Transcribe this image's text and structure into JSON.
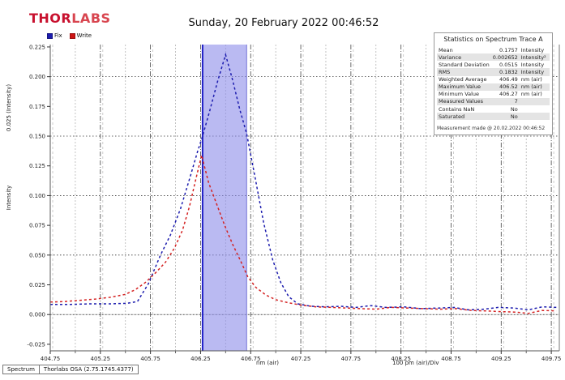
{
  "header": {
    "logo_thor": "THOR",
    "logo_labs": "LABS",
    "title": "Sunday, 20 February 2022 00:46:52"
  },
  "legend": {
    "items": [
      {
        "label": "Fix",
        "color": "#1c1cae"
      },
      {
        "label": "Write",
        "color": "#cc1414"
      }
    ]
  },
  "stats_panel": {
    "title": "Statistics on Spectrum Trace A",
    "rows": [
      {
        "label": "Mean",
        "value": "0.1757",
        "unit": "Intensity"
      },
      {
        "label": "Variance",
        "value": "0.002652",
        "unit": "Intensity²"
      },
      {
        "label": "Standard Deviation",
        "value": "0.0515",
        "unit": "Intensity"
      },
      {
        "label": "RMS",
        "value": "0.1832",
        "unit": "Intensity"
      },
      {
        "label": "Weighted Average",
        "value": "406.49",
        "unit": "nm (air)"
      },
      {
        "label": "Maximum Value",
        "value": "406.52",
        "unit": "nm (air)"
      },
      {
        "label": "Minimum Value",
        "value": "406.27",
        "unit": "nm (air)"
      },
      {
        "label": "Measured Values",
        "value": "7",
        "unit": ""
      },
      {
        "label": "Contains NaN",
        "value": "No",
        "unit": ""
      },
      {
        "label": "Saturated",
        "value": "No",
        "unit": ""
      }
    ],
    "footer": "Measurement made @ 20.02.2022 00:46:52"
  },
  "status_bar": {
    "left": "Spectrum",
    "right": "Thorlabs OSA (2.75.1745.4377)"
  },
  "chart_data": {
    "type": "line",
    "title": "Sunday, 20 February 2022 00:46:52",
    "xlabel": "nm (air)",
    "x_div_label": "100 pm (air)/Div",
    "ylabel": "Intensity",
    "y_div_label": "0.025 (Intensity)",
    "xlim": [
      404.75,
      409.83
    ],
    "ylim": [
      -0.0305,
      0.227
    ],
    "grid": true,
    "legend_position": "top-left",
    "x_ticks_major": [
      404.75,
      405.25,
      405.75,
      406.25,
      406.75,
      407.25,
      407.75,
      408.25,
      408.75,
      409.25,
      409.75
    ],
    "y_ticks": [
      0.225,
      0.2,
      0.175,
      0.15,
      0.125,
      0.1,
      0.075,
      0.05,
      0.025,
      0.0,
      -0.025
    ],
    "y_grid": [
      0.2,
      0.15,
      0.1,
      0.05,
      0.0
    ],
    "highlight_region": {
      "x_start": 406.27,
      "x_end": 406.71,
      "fill": "#8c8cea",
      "opacity": 0.6,
      "left_border": "#2020c8",
      "right_border": "#8888dd"
    },
    "series": [
      {
        "name": "Trace A (Fix)",
        "color": "#1c1cae",
        "dash": "3,3",
        "points": [
          [
            404.75,
            0.0085
          ],
          [
            404.95,
            0.0085
          ],
          [
            405.15,
            0.009
          ],
          [
            405.35,
            0.009
          ],
          [
            405.52,
            0.0095
          ],
          [
            405.62,
            0.011
          ],
          [
            405.73,
            0.026
          ],
          [
            405.85,
            0.05
          ],
          [
            405.95,
            0.067
          ],
          [
            406.05,
            0.089
          ],
          [
            406.15,
            0.117
          ],
          [
            406.22,
            0.137
          ],
          [
            406.27,
            0.15
          ],
          [
            406.34,
            0.171
          ],
          [
            406.42,
            0.196
          ],
          [
            406.5,
            0.2185
          ],
          [
            406.57,
            0.197
          ],
          [
            406.64,
            0.173
          ],
          [
            406.71,
            0.152
          ],
          [
            406.79,
            0.117
          ],
          [
            406.88,
            0.077
          ],
          [
            406.97,
            0.046
          ],
          [
            407.05,
            0.027
          ],
          [
            407.13,
            0.015
          ],
          [
            407.22,
            0.009
          ],
          [
            407.35,
            0.007
          ],
          [
            407.5,
            0.0065
          ],
          [
            407.65,
            0.007
          ],
          [
            407.8,
            0.006
          ],
          [
            407.95,
            0.0075
          ],
          [
            408.1,
            0.006
          ],
          [
            408.28,
            0.0065
          ],
          [
            408.45,
            0.005
          ],
          [
            408.62,
            0.0055
          ],
          [
            408.78,
            0.006
          ],
          [
            408.92,
            0.004
          ],
          [
            409.08,
            0.0045
          ],
          [
            409.22,
            0.006
          ],
          [
            409.38,
            0.0055
          ],
          [
            409.52,
            0.004
          ],
          [
            409.66,
            0.0065
          ],
          [
            409.8,
            0.006
          ]
        ]
      },
      {
        "name": "Trace B (Write)",
        "color": "#d42222",
        "dash": "3,3",
        "points": [
          [
            404.75,
            0.0105
          ],
          [
            404.9,
            0.011
          ],
          [
            405.05,
            0.012
          ],
          [
            405.2,
            0.013
          ],
          [
            405.35,
            0.0145
          ],
          [
            405.5,
            0.017
          ],
          [
            405.6,
            0.021
          ],
          [
            405.7,
            0.027
          ],
          [
            405.8,
            0.035
          ],
          [
            405.9,
            0.044
          ],
          [
            405.99,
            0.056
          ],
          [
            406.07,
            0.071
          ],
          [
            406.14,
            0.091
          ],
          [
            406.2,
            0.113
          ],
          [
            406.26,
            0.134
          ],
          [
            406.33,
            0.111
          ],
          [
            406.41,
            0.093
          ],
          [
            406.49,
            0.075
          ],
          [
            406.57,
            0.059
          ],
          [
            406.65,
            0.045
          ],
          [
            406.72,
            0.032
          ],
          [
            406.8,
            0.023
          ],
          [
            406.9,
            0.0165
          ],
          [
            407.0,
            0.0125
          ],
          [
            407.12,
            0.01
          ],
          [
            407.25,
            0.008
          ],
          [
            407.4,
            0.0065
          ],
          [
            407.55,
            0.006
          ],
          [
            407.7,
            0.0055
          ],
          [
            407.85,
            0.005
          ],
          [
            408.0,
            0.0045
          ],
          [
            408.15,
            0.006
          ],
          [
            408.32,
            0.0055
          ],
          [
            408.48,
            0.005
          ],
          [
            408.64,
            0.0045
          ],
          [
            408.8,
            0.005
          ],
          [
            408.95,
            0.0035
          ],
          [
            409.1,
            0.003
          ],
          [
            409.25,
            0.0025
          ],
          [
            409.4,
            0.002
          ],
          [
            409.52,
            0.001
          ],
          [
            409.66,
            0.0035
          ],
          [
            409.8,
            0.003
          ]
        ]
      }
    ]
  }
}
